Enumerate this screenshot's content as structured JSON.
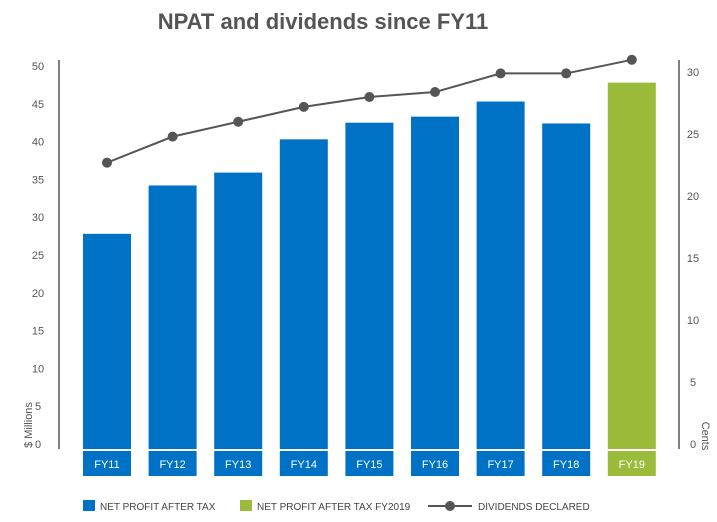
{
  "chart_data": {
    "type": "bar",
    "title": "NPAT and dividends since FY11",
    "categories": [
      "FY11",
      "FY12",
      "FY13",
      "FY14",
      "FY15",
      "FY16",
      "FY17",
      "FY18",
      "FY19"
    ],
    "series": [
      {
        "name": "NET PROFIT AFTER TAX",
        "type": "bar",
        "axis": "left",
        "color": "#0072C6",
        "values": [
          27.8,
          34.2,
          35.9,
          40.3,
          42.5,
          43.3,
          45.3,
          42.4,
          null
        ]
      },
      {
        "name": "NET PROFIT AFTER TAX FY2019",
        "type": "bar",
        "axis": "left",
        "color": "#9BBB3B",
        "values": [
          null,
          null,
          null,
          null,
          null,
          null,
          null,
          null,
          47.8
        ]
      },
      {
        "name": "DIVIDENDS DECLARED",
        "type": "line",
        "axis": "right",
        "color": "#555555",
        "values": [
          22.7,
          24.8,
          26.0,
          27.2,
          28.0,
          28.4,
          29.9,
          29.9,
          31.0
        ]
      }
    ],
    "ylabel_left": "$ Millions",
    "ylabel_right": "Cents",
    "ylim_left": [
      0,
      50
    ],
    "ylim_right": [
      0,
      30.5
    ],
    "yticks_left": [
      "0",
      "5",
      "10",
      "15",
      "20",
      "25",
      "30",
      "35",
      "40",
      "45",
      "50"
    ],
    "yticks_right": [
      "0",
      "5",
      "10",
      "15",
      "20",
      "25",
      "30"
    ],
    "legend_position": "bottom",
    "grid": false
  }
}
